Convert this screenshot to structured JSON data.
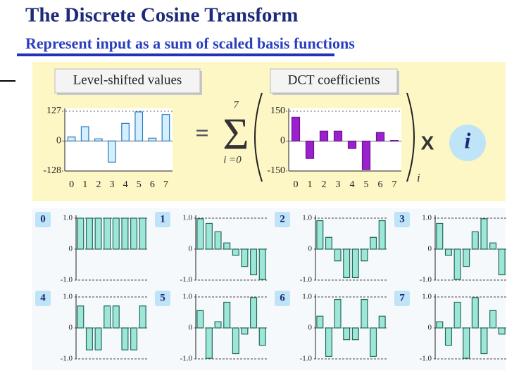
{
  "slide": {
    "title": "The Discrete Cosine Transform",
    "subtitle": "Represent input as a sum of scaled basis functions",
    "equals": "=",
    "sum_symbol": "Σ",
    "sum_upper": "7",
    "sum_lower": "i =0",
    "subscript": "i",
    "multiply": "X",
    "index": "i"
  },
  "chart_data": [
    {
      "type": "bar",
      "title": "Level-shifted values",
      "categories": [
        "0",
        "1",
        "2",
        "3",
        "4",
        "5",
        "6",
        "7"
      ],
      "values": [
        17,
        61,
        9,
        -90,
        75,
        124,
        12,
        113
      ],
      "color": "#d4f0ff",
      "stroke": "#2a78c0",
      "ylim": [
        -128,
        127
      ],
      "yticks": [
        -128,
        0,
        127
      ]
    },
    {
      "type": "bar",
      "title": "DCT coefficients",
      "categories": [
        "0",
        "1",
        "2",
        "3",
        "4",
        "5",
        "6",
        "7"
      ],
      "values": [
        120,
        -87,
        50,
        50,
        -37,
        -143,
        43,
        3
      ],
      "color": "#9a22cc",
      "stroke": "#6a1090",
      "ylim": [
        -150,
        150
      ],
      "yticks": [
        -150,
        0,
        150
      ]
    },
    {
      "type": "bar",
      "title": "0",
      "values": [
        1,
        1,
        1,
        1,
        1,
        1,
        1,
        1
      ],
      "color": "#9ee6d8",
      "stroke": "#206a5c",
      "ylim": [
        -1,
        1
      ],
      "yticks": [
        {
          "value": 1,
          "label": "1.0"
        },
        0,
        {
          "value": -1,
          "label": "-1.0"
        }
      ]
    },
    {
      "type": "bar",
      "title": "1",
      "values": [
        0.98,
        0.83,
        0.56,
        0.2,
        -0.2,
        -0.56,
        -0.83,
        -0.98
      ],
      "color": "#9ee6d8",
      "stroke": "#206a5c",
      "ylim": [
        -1,
        1
      ],
      "yticks": [
        {
          "value": 1,
          "label": "1.0"
        },
        0,
        {
          "value": -1,
          "label": "-1.0"
        }
      ]
    },
    {
      "type": "bar",
      "title": "2",
      "values": [
        0.92,
        0.38,
        -0.38,
        -0.92,
        -0.92,
        -0.38,
        0.38,
        0.92
      ],
      "color": "#9ee6d8",
      "stroke": "#206a5c",
      "ylim": [
        -1,
        1
      ],
      "yticks": [
        {
          "value": 1,
          "label": "1.0"
        },
        0,
        {
          "value": -1,
          "label": "-1.0"
        }
      ]
    },
    {
      "type": "bar",
      "title": "3",
      "values": [
        0.83,
        -0.2,
        -0.98,
        -0.56,
        0.56,
        0.98,
        0.2,
        -0.83
      ],
      "color": "#9ee6d8",
      "stroke": "#206a5c",
      "ylim": [
        -1,
        1
      ],
      "yticks": [
        {
          "value": 1,
          "label": "1.0"
        },
        0,
        {
          "value": -1,
          "label": "-1.0"
        }
      ]
    },
    {
      "type": "bar",
      "title": "4",
      "values": [
        0.71,
        -0.71,
        -0.71,
        0.71,
        0.71,
        -0.71,
        -0.71,
        0.71
      ],
      "color": "#9ee6d8",
      "stroke": "#206a5c",
      "ylim": [
        -1,
        1
      ],
      "yticks": [
        {
          "value": 1,
          "label": "1.0"
        },
        0,
        {
          "value": -1,
          "label": "-1.0"
        }
      ]
    },
    {
      "type": "bar",
      "title": "5",
      "values": [
        0.56,
        -0.98,
        0.2,
        0.83,
        -0.83,
        -0.2,
        0.98,
        -0.56
      ],
      "color": "#9ee6d8",
      "stroke": "#206a5c",
      "ylim": [
        -1,
        1
      ],
      "yticks": [
        {
          "value": 1,
          "label": "1.0"
        },
        0,
        {
          "value": -1,
          "label": "-1.0"
        }
      ]
    },
    {
      "type": "bar",
      "title": "6",
      "values": [
        0.38,
        -0.92,
        0.92,
        -0.38,
        -0.38,
        0.92,
        -0.92,
        0.38
      ],
      "color": "#9ee6d8",
      "stroke": "#206a5c",
      "ylim": [
        -1,
        1
      ],
      "yticks": [
        {
          "value": 1,
          "label": "1.0"
        },
        0,
        {
          "value": -1,
          "label": "-1.0"
        }
      ]
    },
    {
      "type": "bar",
      "title": "7",
      "values": [
        0.2,
        -0.56,
        0.83,
        -0.98,
        0.98,
        -0.83,
        0.56,
        -0.2
      ],
      "color": "#9ee6d8",
      "stroke": "#206a5c",
      "ylim": [
        -1,
        1
      ],
      "yticks": [
        {
          "value": 1,
          "label": "1.0"
        },
        0,
        {
          "value": -1,
          "label": "-1.0"
        }
      ]
    }
  ]
}
